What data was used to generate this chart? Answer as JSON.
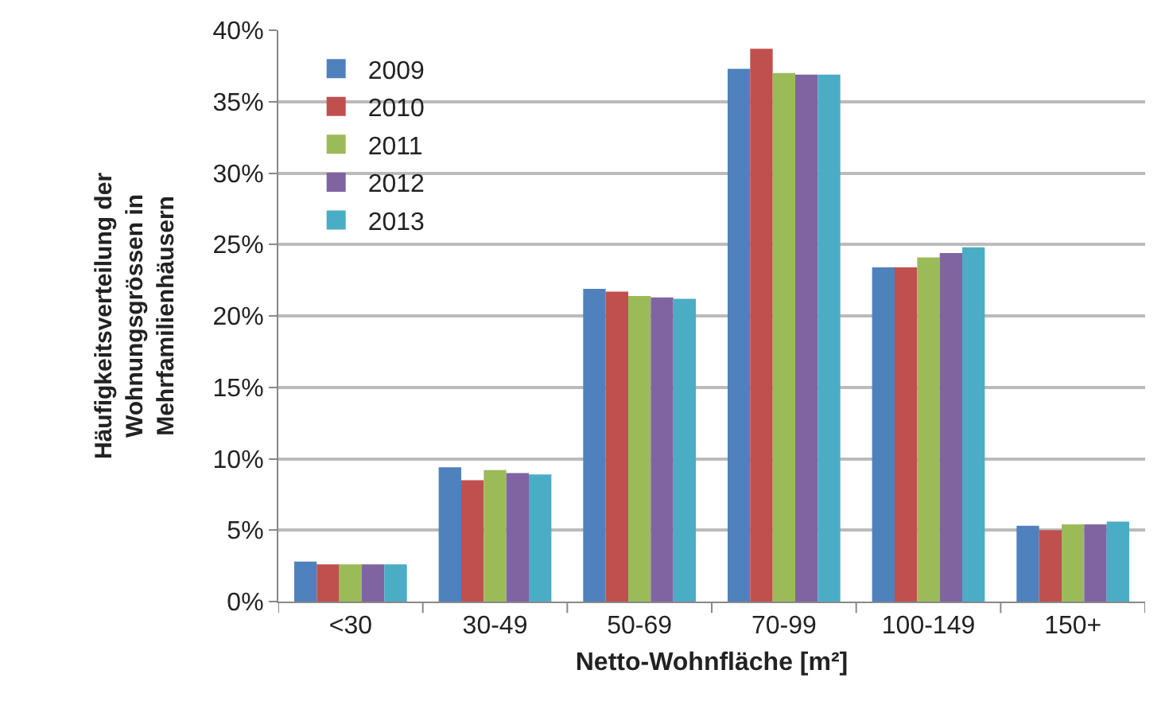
{
  "chart_data": {
    "type": "bar",
    "xlabel": "Netto-Wohnfläche [m²]",
    "ylabel": "Häufigkeitsverteilung der\nWohnungsgrössen in\nMehrfamilienhäusern",
    "categories": [
      "<30",
      "30-49",
      "50-69",
      "70-99",
      "100-149",
      "150+"
    ],
    "series": [
      {
        "name": "2009",
        "color": "#4f81bd",
        "values": [
          2.8,
          9.4,
          21.9,
          37.3,
          23.4,
          5.3
        ]
      },
      {
        "name": "2010",
        "color": "#c0504d",
        "values": [
          2.6,
          8.5,
          21.7,
          38.7,
          23.4,
          5.0
        ]
      },
      {
        "name": "2011",
        "color": "#9bbb59",
        "values": [
          2.6,
          9.2,
          21.4,
          37.0,
          24.1,
          5.4
        ]
      },
      {
        "name": "2012",
        "color": "#8064a2",
        "values": [
          2.6,
          9.0,
          21.3,
          36.9,
          24.4,
          5.4
        ]
      },
      {
        "name": "2013",
        "color": "#4bacc6",
        "values": [
          2.6,
          8.9,
          21.2,
          36.9,
          24.8,
          5.6
        ]
      }
    ],
    "ylim": [
      0,
      40
    ],
    "yticks": [
      {
        "value": 0,
        "label": "0%"
      },
      {
        "value": 5,
        "label": "5%"
      },
      {
        "value": 10,
        "label": "10%"
      },
      {
        "value": 15,
        "label": "15%"
      },
      {
        "value": 20,
        "label": "20%"
      },
      {
        "value": 25,
        "label": "25%"
      },
      {
        "value": 30,
        "label": "30%"
      },
      {
        "value": 35,
        "label": "35%"
      },
      {
        "value": 40,
        "label": "40%"
      }
    ],
    "grid": "y",
    "legend": "top left"
  }
}
